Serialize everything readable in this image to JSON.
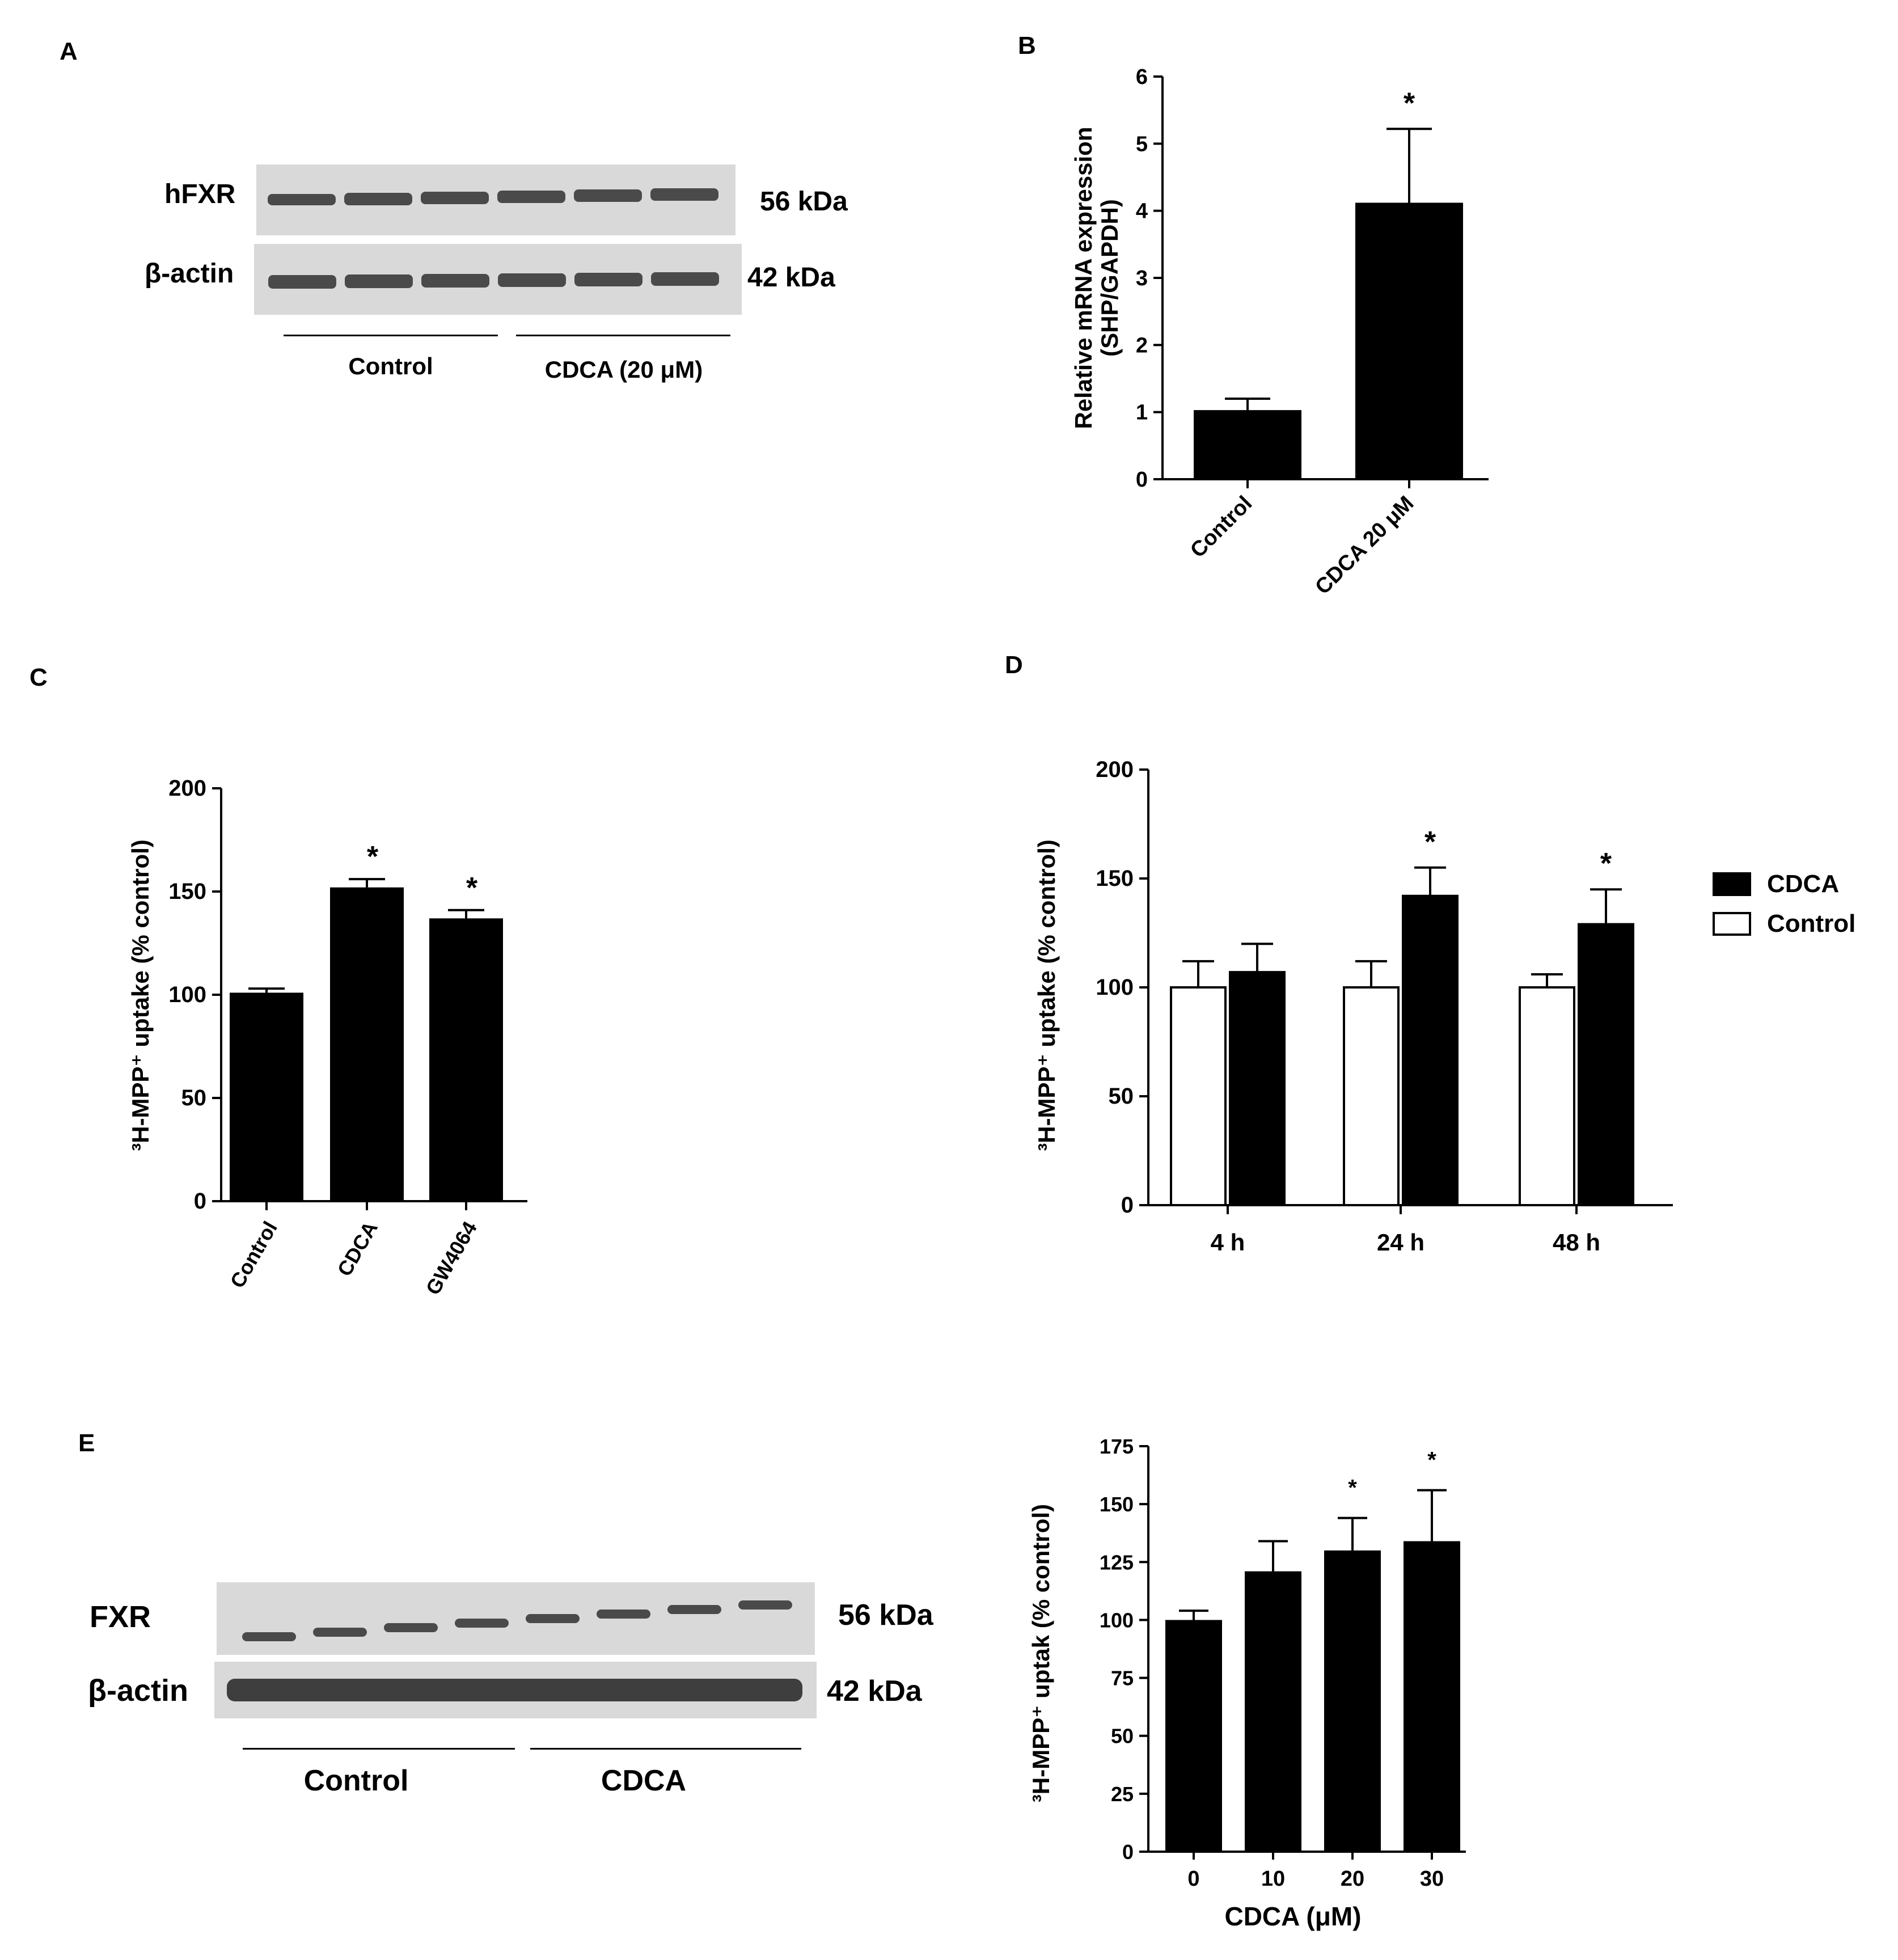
{
  "panels": {
    "A": {
      "letter": "A",
      "blot_rows": [
        {
          "label": "hFXR",
          "kda": "56 kDa"
        },
        {
          "label": "β-actin",
          "kda": "42 kDa"
        }
      ],
      "groups": [
        "Control",
        "CDCA (20  μM)"
      ]
    },
    "B": {
      "letter": "B"
    },
    "C": {
      "letter": "C"
    },
    "D": {
      "letter": "D"
    },
    "E": {
      "letter": "E",
      "blot_rows": [
        {
          "label": "FXR",
          "kda": "56 kDa"
        },
        {
          "label": "β-actin",
          "kda": "42 kDa"
        }
      ],
      "groups": [
        "Control",
        "CDCA"
      ]
    }
  },
  "colors": {
    "bar_fill": "#000000",
    "open_fill": "#ffffff"
  },
  "chart_data": [
    {
      "id": "B",
      "type": "bar",
      "categories": [
        "Control",
        "CDCA 20 μM"
      ],
      "values": [
        1.03,
        4.12
      ],
      "errors": [
        0.17,
        1.1
      ],
      "significance": [
        "",
        "*"
      ],
      "ylabel": [
        "Relative mRNA expression",
        "(SHP/GAPDH)"
      ],
      "ylim": [
        0,
        6
      ],
      "yticks": [
        0,
        1,
        2,
        3,
        4,
        5,
        6
      ],
      "xtick_rotation": -45
    },
    {
      "id": "C",
      "type": "bar",
      "categories": [
        "Control",
        "CDCA",
        "GW4064"
      ],
      "values": [
        101,
        152,
        137
      ],
      "errors": [
        2,
        4,
        4
      ],
      "significance": [
        "",
        "*",
        "*"
      ],
      "ylabel": "³H-MPP⁺ uptake (% control)",
      "ylim": [
        0,
        200
      ],
      "yticks": [
        0,
        50,
        100,
        150,
        200
      ],
      "xtick_rotation": -60
    },
    {
      "id": "D",
      "type": "bar",
      "categories": [
        "4 h",
        "24 h",
        "48 h"
      ],
      "series": [
        {
          "name": "Control",
          "values": [
            100,
            100,
            100
          ],
          "errors": [
            12,
            12,
            6
          ],
          "fill": "open"
        },
        {
          "name": "CDCA",
          "values": [
            107,
            142,
            129
          ],
          "errors": [
            13,
            13,
            16
          ],
          "fill": "solid"
        }
      ],
      "significance": [
        "",
        "*",
        "*"
      ],
      "legend": [
        "CDCA",
        "Control"
      ],
      "legend_position": "right",
      "ylabel": "³H-MPP⁺ uptake (% control)",
      "ylim": [
        0,
        200
      ],
      "yticks": [
        0,
        50,
        100,
        150,
        200
      ]
    },
    {
      "id": "E-bar",
      "type": "bar",
      "categories": [
        "0",
        "10",
        "20",
        "30"
      ],
      "values": [
        100,
        121,
        130,
        134
      ],
      "errors": [
        4,
        13,
        14,
        22
      ],
      "significance": [
        "",
        "",
        "*",
        "*"
      ],
      "xlabel": "CDCA (μM)",
      "ylabel": "³H-MPP⁺ uptak (% control)",
      "ylim": [
        0,
        175
      ],
      "yticks": [
        0,
        25,
        50,
        75,
        100,
        125,
        150,
        175
      ]
    }
  ]
}
